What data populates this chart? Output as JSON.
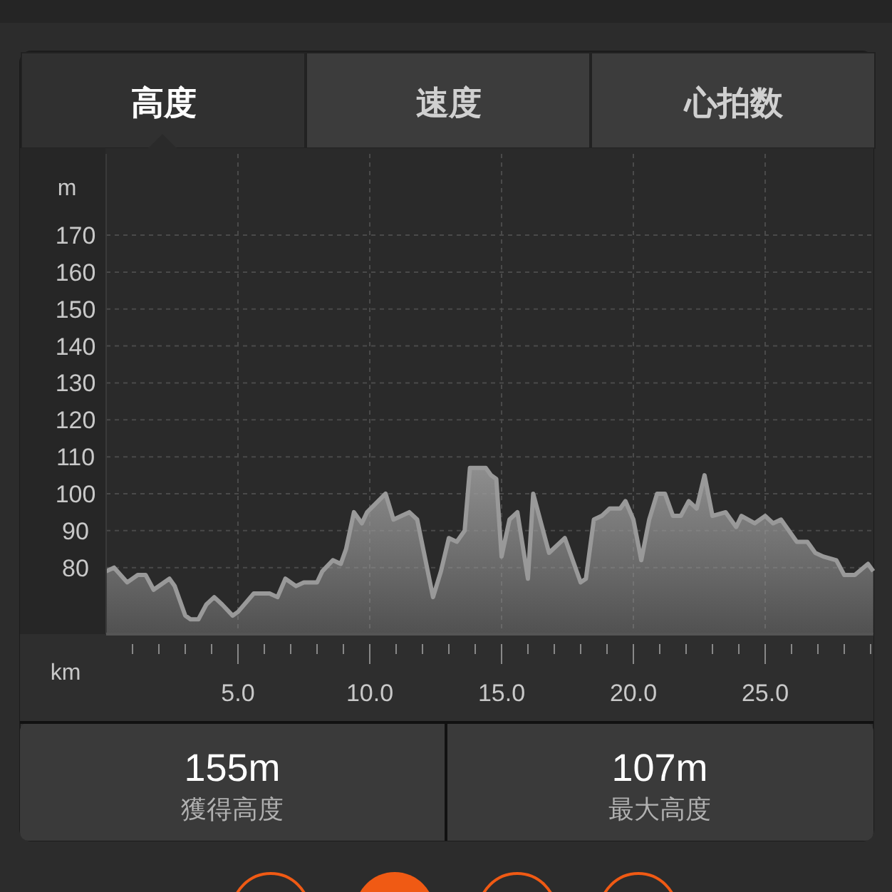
{
  "chart_data": {
    "type": "area",
    "xlabel": "km",
    "ylabel": "m",
    "annotations": [
      "高度",
      "速度",
      "心拍数",
      "155m",
      "獲得高度",
      "107m",
      "最大高度"
    ],
    "x": [
      0,
      0.3,
      0.8,
      1.2,
      1.5,
      1.8,
      2.4,
      2.6,
      3.0,
      3.2,
      3.5,
      3.8,
      4.1,
      4.4,
      4.8,
      5.0,
      5.6,
      6.2,
      6.5,
      6.8,
      7.2,
      7.5,
      8.0,
      8.2,
      8.6,
      8.9,
      9.1,
      9.4,
      9.7,
      9.9,
      10.6,
      10.9,
      11.5,
      11.8,
      12.4,
      12.7,
      13.0,
      13.3,
      13.6,
      13.8,
      14.4,
      14.6,
      14.8,
      15.0,
      15.3,
      15.6,
      16.0,
      16.2,
      16.8,
      17.4,
      18.0,
      18.2,
      18.5,
      18.8,
      19.1,
      19.5,
      19.7,
      20.0,
      20.3,
      20.6,
      20.9,
      21.2,
      21.5,
      21.8,
      22.1,
      22.4,
      22.7,
      23.0,
      23.5,
      23.9,
      24.1,
      24.6,
      25.0,
      25.3,
      25.6,
      26.2,
      26.6,
      26.9,
      27.2,
      27.7,
      28.0,
      28.4,
      28.9,
      29.1
    ],
    "series": [
      {
        "color": "#999999",
        "values": [
          79,
          80,
          76,
          78,
          78,
          74,
          77,
          75,
          67,
          66,
          66,
          70,
          72,
          70,
          67,
          68,
          73,
          73,
          72,
          77,
          75,
          76,
          76,
          79,
          82,
          81,
          85,
          95,
          92,
          95,
          100,
          93,
          95,
          93,
          72,
          79,
          88,
          87,
          90,
          107,
          107,
          105,
          104,
          83,
          93,
          95,
          77,
          100,
          84,
          88,
          76,
          77,
          93,
          94,
          96,
          96,
          98,
          93,
          82,
          93,
          100,
          100,
          94,
          94,
          98,
          96,
          105,
          94,
          95,
          91,
          94,
          92,
          94,
          92,
          93,
          87,
          87,
          84,
          83,
          82,
          78,
          78,
          81,
          79
        ]
      }
    ],
    "xlim": [
      0,
      29.1
    ],
    "ylim": [
      62,
      192
    ],
    "xticks": [
      {
        "value": 1,
        "label": null
      },
      {
        "value": 2,
        "label": null
      },
      {
        "value": 3,
        "label": null
      },
      {
        "value": 4,
        "label": null
      },
      {
        "value": 5,
        "label": "5.0"
      },
      {
        "value": 6,
        "label": null
      },
      {
        "value": 7,
        "label": null
      },
      {
        "value": 8,
        "label": null
      },
      {
        "value": 9,
        "label": null
      },
      {
        "value": 10,
        "label": "10.0"
      },
      {
        "value": 11,
        "label": null
      },
      {
        "value": 12,
        "label": null
      },
      {
        "value": 13,
        "label": null
      },
      {
        "value": 14,
        "label": null
      },
      {
        "value": 15,
        "label": "15.0"
      },
      {
        "value": 16,
        "label": null
      },
      {
        "value": 17,
        "label": null
      },
      {
        "value": 18,
        "label": null
      },
      {
        "value": 19,
        "label": null
      },
      {
        "value": 20,
        "label": "20.0"
      },
      {
        "value": 21,
        "label": null
      },
      {
        "value": 22,
        "label": null
      },
      {
        "value": 23,
        "label": null
      },
      {
        "value": 24,
        "label": null
      },
      {
        "value": 25,
        "label": "25.0"
      },
      {
        "value": 26,
        "label": null
      },
      {
        "value": 27,
        "label": null
      },
      {
        "value": 28,
        "label": null
      },
      {
        "value": 29,
        "label": null
      }
    ],
    "yticks": [
      80,
      90,
      100,
      110,
      120,
      130,
      140,
      150,
      160,
      170
    ],
    "grid": true,
    "marker": "none",
    "line_style": "solid"
  }
}
